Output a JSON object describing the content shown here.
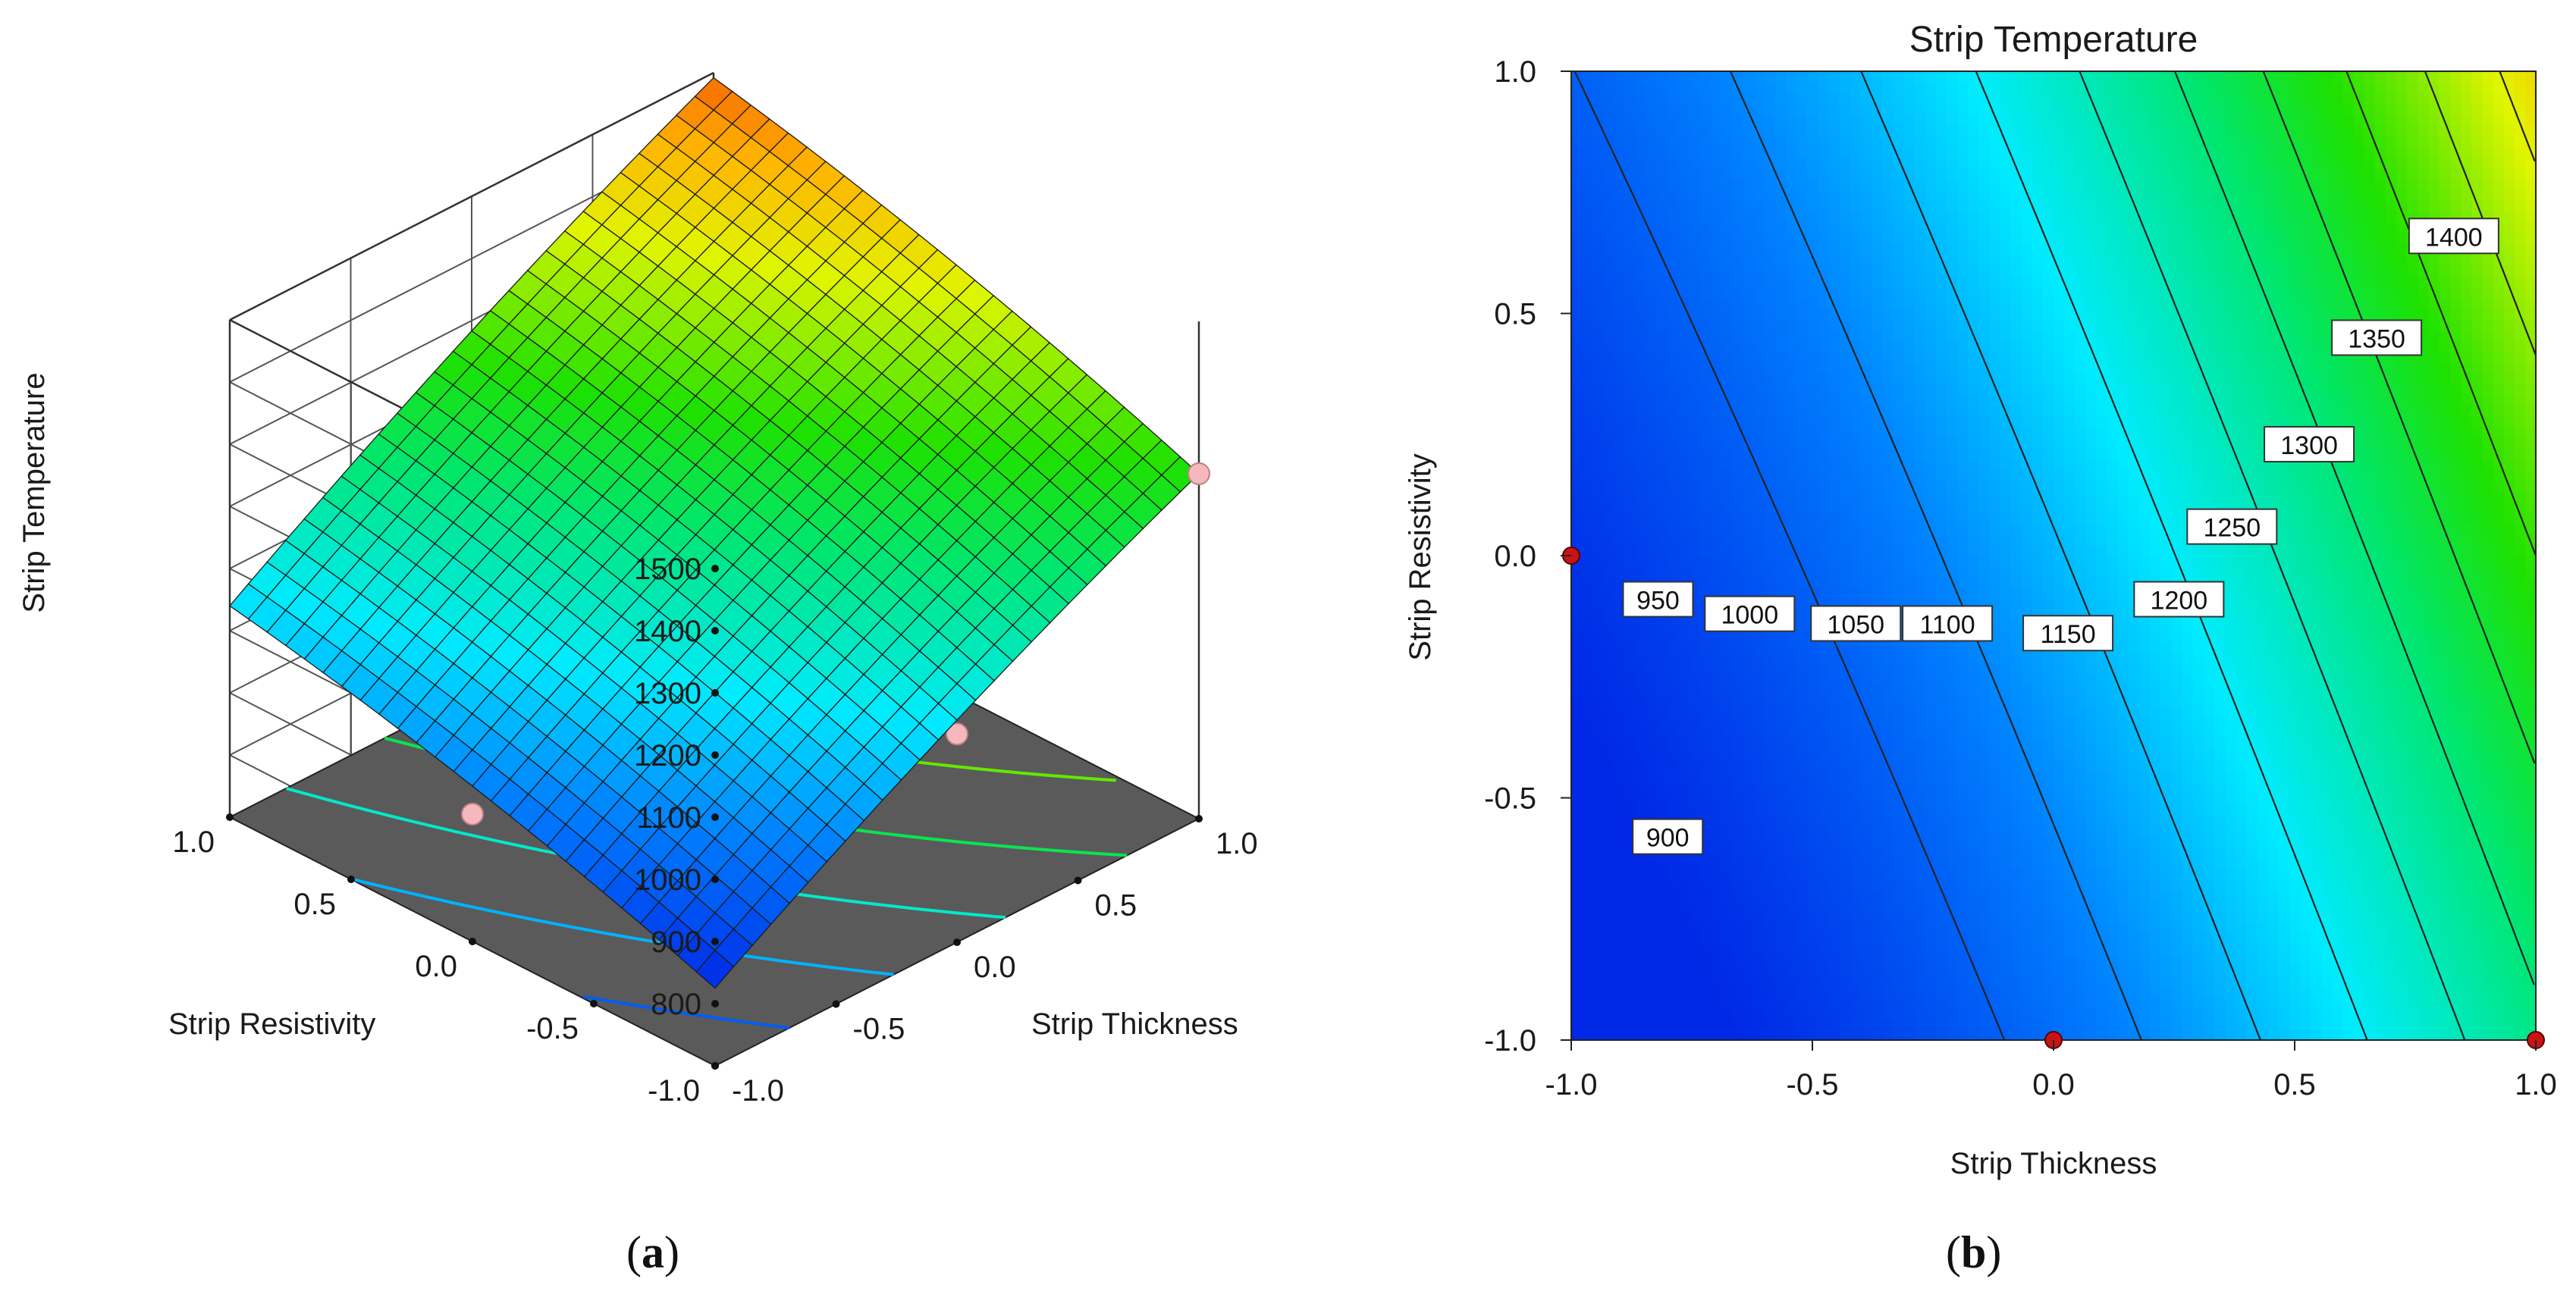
{
  "chart_data": [
    {
      "type": "surface3d",
      "panel_label": "(a)",
      "panel_label_parts": {
        "open": "(",
        "letter": "a",
        "close": ")"
      },
      "zlabel": "Strip Temperature",
      "xlabel": "Strip Thickness",
      "ylabel": "Strip Resistivity",
      "x_ticks": [
        "-1.0",
        "-0.5",
        "0.0",
        "0.5",
        "1.0"
      ],
      "y_ticks": [
        "-1.0",
        "-0.5",
        "0.0",
        "0.5",
        "1.0"
      ],
      "z_ticks": [
        "800",
        "900",
        "1000",
        "1100",
        "1200",
        "1300",
        "1400",
        "1500"
      ],
      "xlim": [
        -1,
        1
      ],
      "ylim": [
        -1,
        1
      ],
      "zlim": [
        700,
        1500
      ],
      "surface_corners": [
        {
          "x": -1,
          "y": -1,
          "z": 825
        },
        {
          "x": 1,
          "y": -1,
          "z": 1255
        },
        {
          "x": -1,
          "y": 1,
          "z": 1040
        },
        {
          "x": 1,
          "y": 1,
          "z": 1492
        }
      ],
      "design_points": [
        {
          "x": -1,
          "y": 0,
          "z": 905
        },
        {
          "x": 0,
          "y": -1,
          "z": 1035
        },
        {
          "x": 1,
          "y": -1,
          "z": 1255
        }
      ]
    },
    {
      "type": "contour",
      "panel_label": "(b)",
      "panel_label_parts": {
        "open": "(",
        "letter": "b",
        "close": ")"
      },
      "title": "Strip Temperature",
      "xlabel": "Strip Thickness",
      "ylabel": "Strip Resistivity",
      "x_ticks": [
        "-1.0",
        "-0.5",
        "0.0",
        "0.5",
        "1.0"
      ],
      "y_ticks": [
        "-1.0",
        "-0.5",
        "0.0",
        "0.5",
        "1.0"
      ],
      "xlim": [
        -1,
        1
      ],
      "ylim": [
        -1,
        1
      ],
      "levels": [
        900,
        950,
        1000,
        1050,
        1100,
        1150,
        1200,
        1250,
        1300,
        1350,
        1400
      ],
      "level_labels": [
        {
          "text": "900",
          "x": -0.8,
          "y": -0.58
        },
        {
          "text": "950",
          "x": -0.82,
          "y": -0.09
        },
        {
          "text": "1000",
          "x": -0.63,
          "y": -0.12
        },
        {
          "text": "1050",
          "x": -0.41,
          "y": -0.14
        },
        {
          "text": "1100",
          "x": -0.22,
          "y": -0.14
        },
        {
          "text": "1150",
          "x": 0.03,
          "y": -0.16
        },
        {
          "text": "1200",
          "x": 0.26,
          "y": -0.09
        },
        {
          "text": "1250",
          "x": 0.37,
          "y": 0.06
        },
        {
          "text": "1300",
          "x": 0.53,
          "y": 0.23
        },
        {
          "text": "1350",
          "x": 0.67,
          "y": 0.45
        },
        {
          "text": "1400",
          "x": 0.83,
          "y": 0.66
        }
      ],
      "design_points": [
        {
          "x": -1,
          "y": 0
        },
        {
          "x": 0,
          "y": -1
        },
        {
          "x": 1,
          "y": -1
        }
      ],
      "zlim": [
        825,
        1492
      ]
    }
  ]
}
